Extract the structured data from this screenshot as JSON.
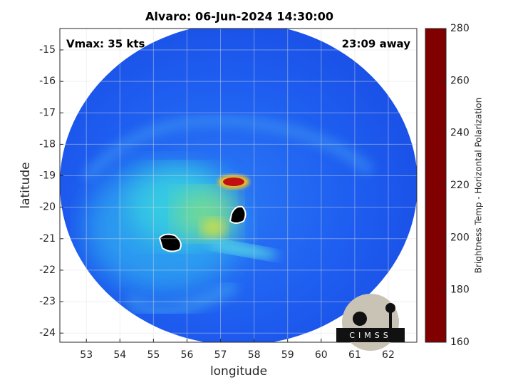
{
  "chart_data": {
    "type": "image",
    "title": "Alvaro: 06-Jun-2024 14:30:00",
    "annotations": [
      "Vmax: 35 kts",
      "23:09 away"
    ],
    "xlabel": "longitude",
    "ylabel": "latitude",
    "xlim": [
      52.21,
      62.85
    ],
    "xticks": [
      53,
      54,
      55,
      56,
      57,
      58,
      59,
      60,
      61,
      62
    ],
    "ylim": [
      -24.29,
      -14.32
    ],
    "yticks": [
      -15,
      -16,
      -17,
      -18,
      -19,
      -20,
      -21,
      -22,
      -23,
      -24
    ],
    "grid": true,
    "colorbar": {
      "label": "Brightness Temp - Horizontal Polarization",
      "colormap": "jet",
      "clim": [
        160,
        280
      ],
      "ticks": [
        160,
        180,
        200,
        220,
        240,
        260,
        280
      ]
    },
    "logo": "CIMSS"
  }
}
